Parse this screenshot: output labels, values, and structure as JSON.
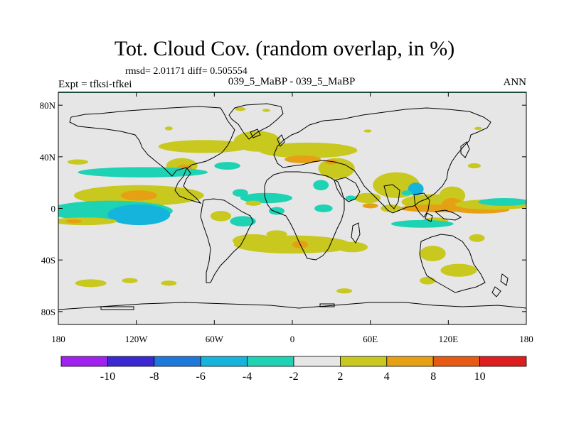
{
  "header": {
    "title": "Tot. Cloud Cov. (random overlap, in %)",
    "stats": "rmsd= 2.01171 diff= 0.505554",
    "expt": "Expt = tfksi-tfkei",
    "subtitle": "039_5_MaBP - 039_5_MaBP",
    "season": "ANN"
  },
  "colors": {
    "land_outline": "#000000",
    "neutral": "#e6e6e6",
    "frame_top": "#3a9a7a"
  },
  "chart_data": {
    "type": "heatmap",
    "title": "Tot. Cloud Cov. (random overlap, in %)",
    "xlabel": "",
    "ylabel": "",
    "xlim": [
      -180,
      180
    ],
    "ylim": [
      -90,
      90
    ],
    "x_ticks": [
      {
        "value": -180,
        "label": "180"
      },
      {
        "value": -120,
        "label": "120W"
      },
      {
        "value": -60,
        "label": "60W"
      },
      {
        "value": 0,
        "label": "0"
      },
      {
        "value": 60,
        "label": "60E"
      },
      {
        "value": 120,
        "label": "120E"
      },
      {
        "value": 180,
        "label": "180"
      }
    ],
    "y_ticks": [
      {
        "value": 80,
        "label": "80N"
      },
      {
        "value": 40,
        "label": "40N"
      },
      {
        "value": 0,
        "label": "0"
      },
      {
        "value": -40,
        "label": "40S"
      },
      {
        "value": -80,
        "label": "80S"
      }
    ],
    "colorbar": {
      "bins": [
        {
          "color": "#a020f0"
        },
        {
          "color": "#3c28d2"
        },
        {
          "color": "#1e78dc"
        },
        {
          "color": "#14b4dc"
        },
        {
          "color": "#1ed2b4"
        },
        {
          "color": "#e6e6e6"
        },
        {
          "color": "#c8c81e"
        },
        {
          "color": "#e6a014"
        },
        {
          "color": "#e65a14"
        },
        {
          "color": "#dc1e1e"
        }
      ],
      "labels": [
        "-10",
        "-8",
        "-6",
        "-4",
        "-2",
        "2",
        "4",
        "8",
        "10"
      ]
    },
    "regions": [
      {
        "lon": -40,
        "lat": 77,
        "rlon": 4,
        "rlat": 1.5,
        "level": "4"
      },
      {
        "lon": -20,
        "lat": 76,
        "rlon": 3,
        "rlat": 1.2,
        "level": "4"
      },
      {
        "lon": -95,
        "lat": 62,
        "rlon": 3,
        "rlat": 1.5,
        "level": "4"
      },
      {
        "lon": 58,
        "lat": 60,
        "rlon": 3,
        "rlat": 1.2,
        "level": "4"
      },
      {
        "lon": 143,
        "lat": 62,
        "rlon": 3,
        "rlat": 1.2,
        "level": "4"
      },
      {
        "lon": -68,
        "lat": 48,
        "rlon": 35,
        "rlat": 5,
        "level": "4"
      },
      {
        "lon": -27,
        "lat": 52,
        "rlon": 18,
        "rlat": 8,
        "level": "4"
      },
      {
        "lon": -85,
        "lat": 33,
        "rlon": 12,
        "rlat": 6,
        "level": "4"
      },
      {
        "lon": -83,
        "lat": 31,
        "rlon": 6,
        "rlat": 3,
        "level": "8"
      },
      {
        "lon": 12,
        "lat": 45,
        "rlon": 38,
        "rlat": 6,
        "level": "4"
      },
      {
        "lon": 34,
        "lat": 31,
        "rlon": 14,
        "rlat": 8,
        "level": "4"
      },
      {
        "lon": 8,
        "lat": 38,
        "rlon": 14,
        "rlat": 3,
        "level": "8"
      },
      {
        "lon": 30,
        "lat": 36,
        "rlon": 5,
        "rlat": 2,
        "level": "8"
      },
      {
        "lon": -115,
        "lat": 28,
        "rlon": 50,
        "rlat": 4,
        "level": "-2"
      },
      {
        "lon": -50,
        "lat": 33,
        "rlon": 10,
        "rlat": 3,
        "level": "-2"
      },
      {
        "lon": -118,
        "lat": 10,
        "rlon": 50,
        "rlat": 8,
        "level": "4"
      },
      {
        "lon": -118,
        "lat": 10,
        "rlon": 14,
        "rlat": 4,
        "level": "8"
      },
      {
        "lon": -140,
        "lat": -2,
        "rlon": 48,
        "rlat": 8,
        "level": "-2"
      },
      {
        "lon": -118,
        "lat": -5,
        "rlon": 24,
        "rlat": 8,
        "level": "-4"
      },
      {
        "lon": -160,
        "lat": -10,
        "rlon": 25,
        "rlat": 3,
        "level": "4"
      },
      {
        "lon": -168,
        "lat": -10,
        "rlon": 6,
        "rlat": 1.5,
        "level": "8"
      },
      {
        "lon": -38,
        "lat": -10,
        "rlon": 10,
        "rlat": 4,
        "level": "-2"
      },
      {
        "lon": -20,
        "lat": 8,
        "rlon": 20,
        "rlat": 4,
        "level": "-2"
      },
      {
        "lon": -40,
        "lat": 12,
        "rlon": 6,
        "rlat": 3,
        "level": "-2"
      },
      {
        "lon": 22,
        "lat": 18,
        "rlon": 6,
        "rlat": 4,
        "level": "-2"
      },
      {
        "lon": 24,
        "lat": 0,
        "rlon": 7,
        "rlat": 3,
        "level": "-2"
      },
      {
        "lon": -30,
        "lat": 4,
        "rlon": 6,
        "rlat": 2,
        "level": "4"
      },
      {
        "lon": -55,
        "lat": -6,
        "rlon": 8,
        "rlat": 4,
        "level": "4"
      },
      {
        "lon": -12,
        "lat": -2,
        "rlon": 6,
        "rlat": 3,
        "level": "-2"
      },
      {
        "lon": -12,
        "lat": -20,
        "rlon": 8,
        "rlat": 3,
        "level": "4"
      },
      {
        "lon": 0,
        "lat": -28,
        "rlon": 45,
        "rlat": 7,
        "level": "4"
      },
      {
        "lon": -30,
        "lat": -25,
        "rlon": 16,
        "rlat": 5,
        "level": "4"
      },
      {
        "lon": 6,
        "lat": -28,
        "rlon": 6,
        "rlat": 3,
        "level": "8"
      },
      {
        "lon": 26,
        "lat": -30,
        "rlon": 14,
        "rlat": 4,
        "level": "4"
      },
      {
        "lon": 46,
        "lat": -30,
        "rlon": 12,
        "rlat": 4,
        "level": "4"
      },
      {
        "lon": 58,
        "lat": 8,
        "rlon": 10,
        "rlat": 4,
        "level": "4"
      },
      {
        "lon": 80,
        "lat": 18,
        "rlon": 18,
        "rlat": 10,
        "level": "4"
      },
      {
        "lon": 60,
        "lat": 2,
        "rlon": 6,
        "rlat": 2,
        "level": "8"
      },
      {
        "lon": 95,
        "lat": 15,
        "rlon": 6,
        "rlat": 5,
        "level": "-4"
      },
      {
        "lon": 97,
        "lat": 16,
        "rlon": 3,
        "rlat": 2,
        "level": "-6"
      },
      {
        "lon": 88,
        "lat": 12,
        "rlon": 4,
        "rlat": 2,
        "level": "-2"
      },
      {
        "lon": 108,
        "lat": 5,
        "rlon": 24,
        "rlat": 6,
        "level": "4"
      },
      {
        "lon": 123,
        "lat": 10,
        "rlon": 10,
        "rlat": 7,
        "level": "4"
      },
      {
        "lon": 112,
        "lat": 0,
        "rlon": 30,
        "rlat": 3,
        "level": "8"
      },
      {
        "lon": 123,
        "lat": 3,
        "rlon": 8,
        "rlat": 5,
        "level": "8"
      },
      {
        "lon": 145,
        "lat": -1,
        "rlon": 22,
        "rlat": 3,
        "level": "8"
      },
      {
        "lon": 155,
        "lat": 3,
        "rlon": 30,
        "rlat": 4,
        "level": "4"
      },
      {
        "lon": 163,
        "lat": 5,
        "rlon": 20,
        "rlat": 3,
        "level": "-2"
      },
      {
        "lon": 76,
        "lat": 0,
        "rlon": 8,
        "rlat": 3,
        "level": "4"
      },
      {
        "lon": 110,
        "lat": -10,
        "rlon": 10,
        "rlat": 3,
        "level": "4"
      },
      {
        "lon": 100,
        "lat": -12,
        "rlon": 24,
        "rlat": 3,
        "level": "-2"
      },
      {
        "lon": 108,
        "lat": -35,
        "rlon": 10,
        "rlat": 6,
        "level": "4"
      },
      {
        "lon": 128,
        "lat": -48,
        "rlon": 14,
        "rlat": 5,
        "level": "4"
      },
      {
        "lon": 142,
        "lat": -23,
        "rlon": 6,
        "rlat": 3,
        "level": "4"
      },
      {
        "lon": 104,
        "lat": -56,
        "rlon": 6,
        "rlat": 3,
        "level": "4"
      },
      {
        "lon": 40,
        "lat": -64,
        "rlon": 6,
        "rlat": 2,
        "level": "4"
      },
      {
        "lon": -155,
        "lat": -58,
        "rlon": 12,
        "rlat": 3,
        "level": "4"
      },
      {
        "lon": -125,
        "lat": -56,
        "rlon": 6,
        "rlat": 2,
        "level": "4"
      },
      {
        "lon": -95,
        "lat": -58,
        "rlon": 6,
        "rlat": 2,
        "level": "4"
      },
      {
        "lon": -165,
        "lat": 36,
        "rlon": 8,
        "rlat": 2,
        "level": "4"
      },
      {
        "lon": 140,
        "lat": 33,
        "rlon": 5,
        "rlat": 2,
        "level": "4"
      },
      {
        "lon": 45,
        "lat": 8,
        "rlon": 4,
        "rlat": 2,
        "level": "-2"
      }
    ]
  }
}
